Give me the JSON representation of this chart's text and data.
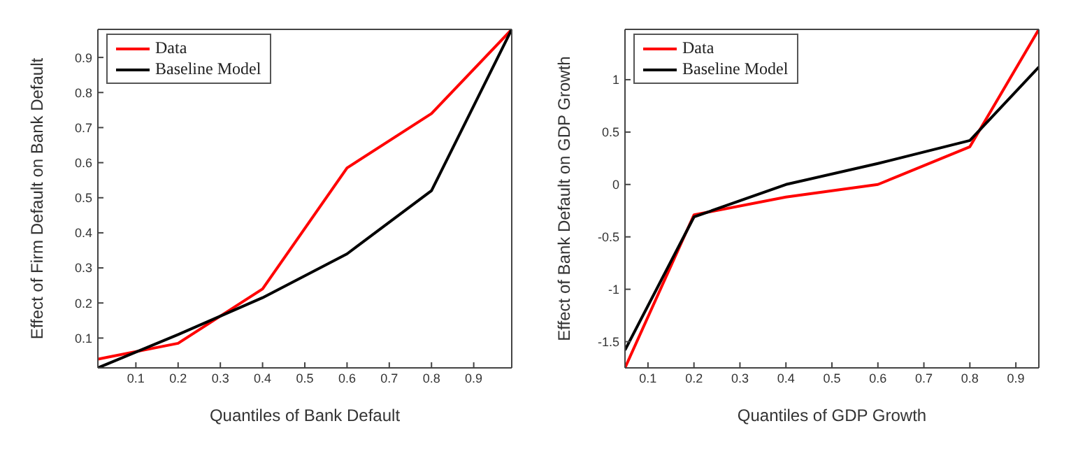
{
  "chart_data": [
    {
      "type": "line",
      "xlabel": "Quantiles of Bank Default",
      "ylabel": "Effect of Firm Default on Bank Default",
      "x": [
        0.01,
        0.2,
        0.4,
        0.6,
        0.8,
        0.99
      ],
      "xlim": [
        0.01,
        0.99
      ],
      "xticks": [
        0.1,
        0.2,
        0.3,
        0.4,
        0.5,
        0.6,
        0.7,
        0.8,
        0.9
      ],
      "ylim": [
        0.015,
        0.98
      ],
      "yticks": [
        0.1,
        0.2,
        0.3,
        0.4,
        0.5,
        0.6,
        0.7,
        0.8,
        0.9
      ],
      "legend": "top left",
      "grid": false,
      "marker": "none",
      "line_style": "solid",
      "series": [
        {
          "name": "Data",
          "color": "#ff0000",
          "values": [
            0.04,
            0.085,
            0.24,
            0.585,
            0.74,
            0.98
          ]
        },
        {
          "name": "Baseline Model",
          "color": "#000000",
          "values": [
            0.015,
            0.11,
            0.215,
            0.34,
            0.52,
            0.98
          ]
        }
      ]
    },
    {
      "type": "line",
      "xlabel": "Quantiles of GDP Growth",
      "ylabel": "Effect of Bank Default on GDP Growth",
      "x": [
        0.05,
        0.2,
        0.4,
        0.6,
        0.8,
        0.95
      ],
      "xlim": [
        0.05,
        0.95
      ],
      "xticks": [
        0.1,
        0.2,
        0.3,
        0.4,
        0.5,
        0.6,
        0.7,
        0.8,
        0.9
      ],
      "ylim": [
        -1.75,
        1.48
      ],
      "yticks": [
        -1.5,
        -1,
        -0.5,
        0,
        0.5,
        1
      ],
      "legend": "top left",
      "grid": false,
      "marker": "none",
      "line_style": "solid",
      "series": [
        {
          "name": "Data",
          "color": "#ff0000",
          "values": [
            -1.75,
            -0.29,
            -0.12,
            0.0,
            0.36,
            1.48
          ]
        },
        {
          "name": "Baseline Model",
          "color": "#000000",
          "values": [
            -1.58,
            -0.31,
            0.0,
            0.2,
            0.42,
            1.12
          ]
        }
      ]
    }
  ]
}
